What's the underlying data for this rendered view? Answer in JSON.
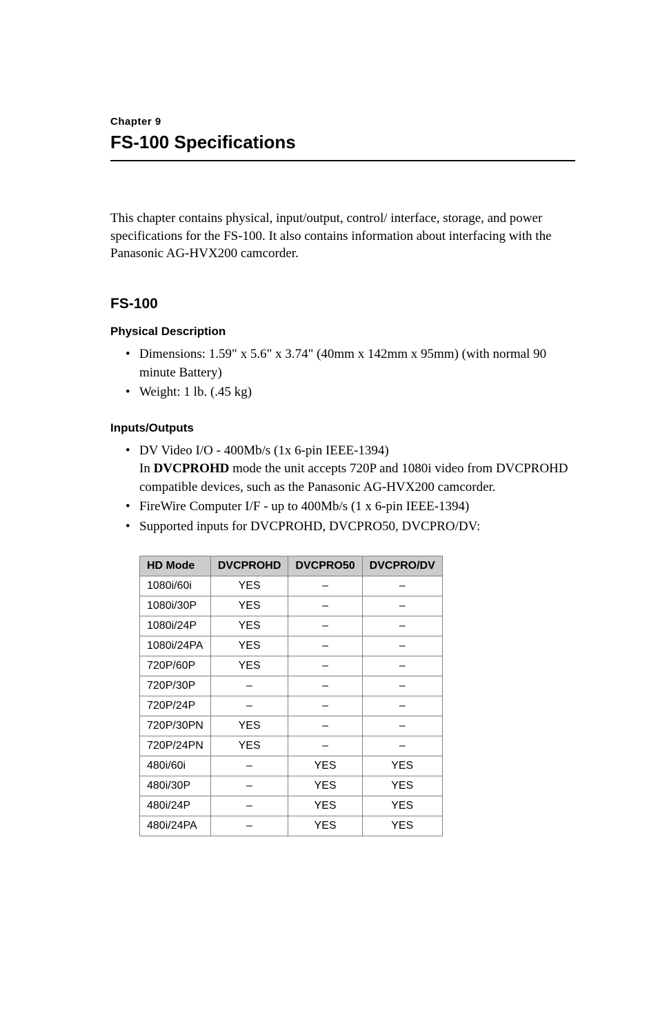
{
  "chapter": {
    "label": "Chapter 9",
    "title": "FS-100 Specifications"
  },
  "intro": "This chapter contains physical, input/output, control/ interface, storage, and power specifications for the FS-100. It also contains information about interfacing with the Panasonic AG-HVX200 camcorder.",
  "sections": {
    "fs100": {
      "heading": "FS-100",
      "physical": {
        "heading": "Physical Description",
        "items": [
          "Dimensions: 1.59\" x 5.6\" x 3.74\" (40mm x 142mm x 95mm) (with normal 90 minute Battery)",
          "Weight: 1 lb. (.45 kg)"
        ]
      },
      "io": {
        "heading": "Inputs/Outputs",
        "item1_pre": "DV Video I/O - 400Mb/s (1x 6-pin IEEE-1394)",
        "item1_in": "In ",
        "item1_bold": "DVCPROHD",
        "item1_rest": " mode the unit accepts 720P and 1080i video from DVCPROHD compatible devices, such as the Panasonic AG-HVX200 camcorder.",
        "item2": "FireWire Computer I/F - up to 400Mb/s (1 x 6-pin IEEE-1394)",
        "item3": "Supported inputs for DVCPROHD, DVCPRO50, DVCPRO/DV:"
      }
    }
  },
  "table": {
    "headers": [
      "HD Mode",
      "DVCPROHD",
      "DVCPRO50",
      "DVCPRO/DV"
    ],
    "rows": [
      [
        "1080i/60i",
        "YES",
        "–",
        "–"
      ],
      [
        "1080i/30P",
        "YES",
        "–",
        "–"
      ],
      [
        "1080i/24P",
        "YES",
        "–",
        "–"
      ],
      [
        "1080i/24PA",
        "YES",
        "–",
        "–"
      ],
      [
        "720P/60P",
        "YES",
        "–",
        "–"
      ],
      [
        "720P/30P",
        "–",
        "–",
        "–"
      ],
      [
        "720P/24P",
        "–",
        "–",
        "–"
      ],
      [
        "720P/30PN",
        "YES",
        "–",
        "–"
      ],
      [
        "720P/24PN",
        "YES",
        "–",
        "–"
      ],
      [
        "480i/60i",
        "–",
        "YES",
        "YES"
      ],
      [
        "480i/30P",
        "–",
        "YES",
        "YES"
      ],
      [
        "480i/24P",
        "–",
        "YES",
        "YES"
      ],
      [
        "480i/24PA",
        "–",
        "YES",
        "YES"
      ]
    ],
    "header_bg": "#cccccc",
    "border_color": "#808080",
    "font_size": 16
  }
}
